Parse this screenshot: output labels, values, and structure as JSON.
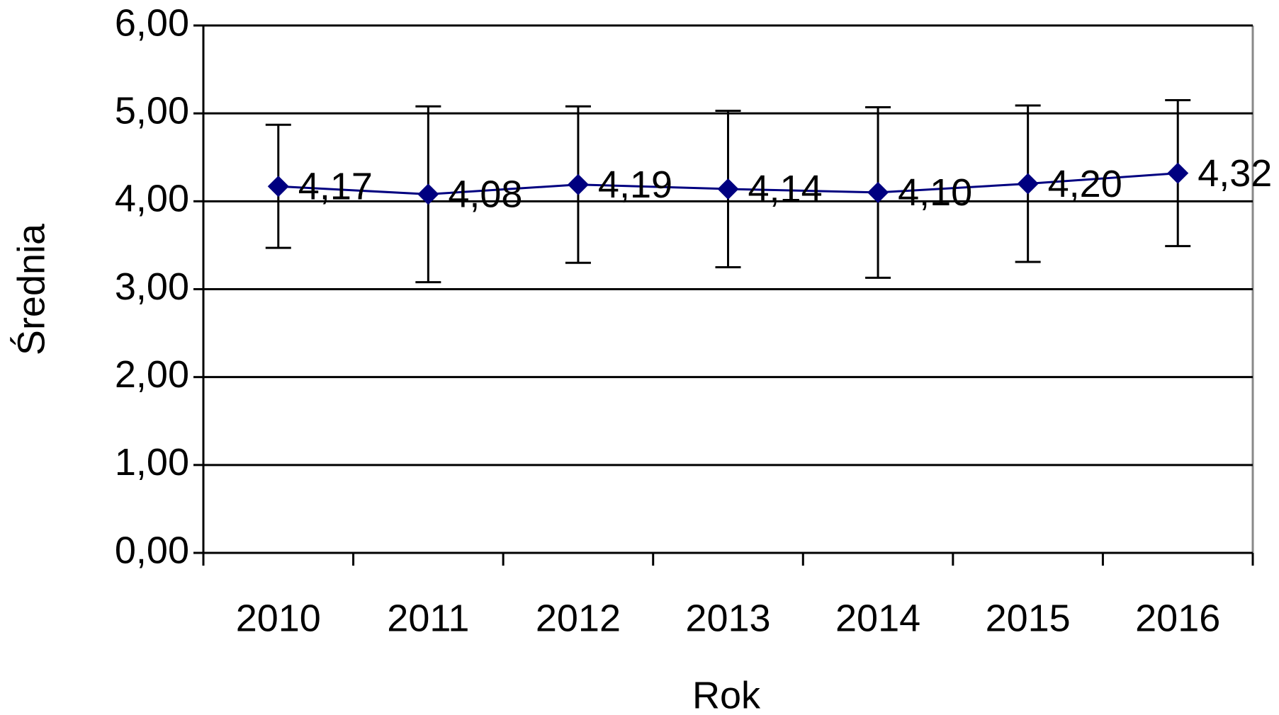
{
  "chart_data": {
    "type": "line",
    "x_label": "Rok",
    "y_label": "Średnia",
    "categories": [
      "2010",
      "2011",
      "2012",
      "2013",
      "2014",
      "2015",
      "2016"
    ],
    "values": [
      4.17,
      4.08,
      4.19,
      4.14,
      4.1,
      4.2,
      4.32
    ],
    "value_labels": [
      "4,17",
      "4,08",
      "4,19",
      "4,14",
      "4,10",
      "4,20",
      "4,32"
    ],
    "errors": [
      0.7,
      1.0,
      0.89,
      0.89,
      0.97,
      0.89,
      0.83
    ],
    "color": "#000080",
    "ylim": [
      0,
      6
    ],
    "yticks": [
      {
        "value": 0,
        "label": "0,00"
      },
      {
        "value": 1,
        "label": "1,00"
      },
      {
        "value": 2,
        "label": "2,00"
      },
      {
        "value": 3,
        "label": "3,00"
      },
      {
        "value": 4,
        "label": "4,00"
      },
      {
        "value": 5,
        "label": "5,00"
      },
      {
        "value": 6,
        "label": "6,00"
      }
    ],
    "grid": true
  }
}
